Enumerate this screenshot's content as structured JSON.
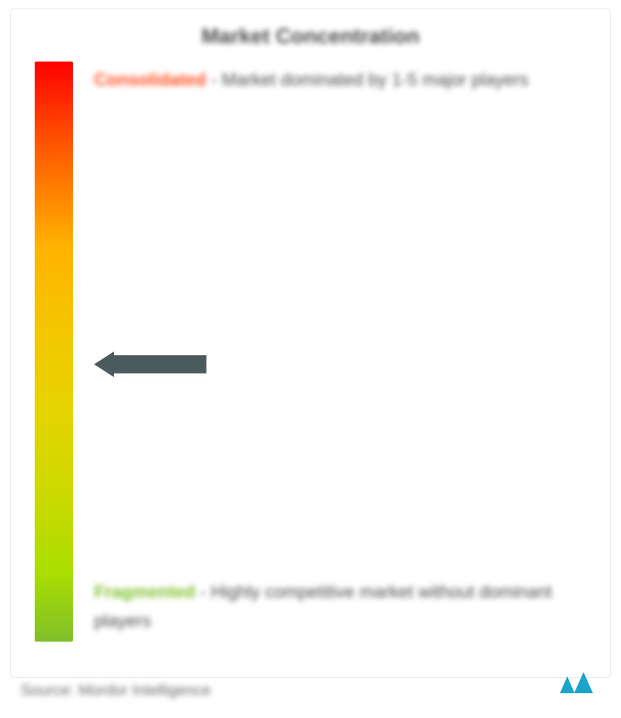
{
  "title": "Market Concentration",
  "scale": {
    "gradient_colors": [
      "#ff0000",
      "#ff5a00",
      "#ffb300",
      "#f2c800",
      "#e6d400",
      "#cdd900",
      "#aade00",
      "#7fbf2a"
    ],
    "gradient_stops": [
      0,
      15,
      32,
      48,
      60,
      74,
      88,
      100
    ]
  },
  "top_label": {
    "bold": "Consolidated",
    "color": "#ff4d1f",
    "rest": " - Market dominated by 1-5 major players"
  },
  "bottom_label": {
    "bold": "Fragmented",
    "color": "#7fbf2a",
    "rest": " - Highly competitive market without dominant players"
  },
  "arrow": {
    "position_pct": 50,
    "color": "#4a5a5d",
    "shaft_width": 130
  },
  "source": "Source: Mordor Intelligence",
  "logo": {
    "fill": "#1ba6c9",
    "bg": "#ffffff"
  }
}
